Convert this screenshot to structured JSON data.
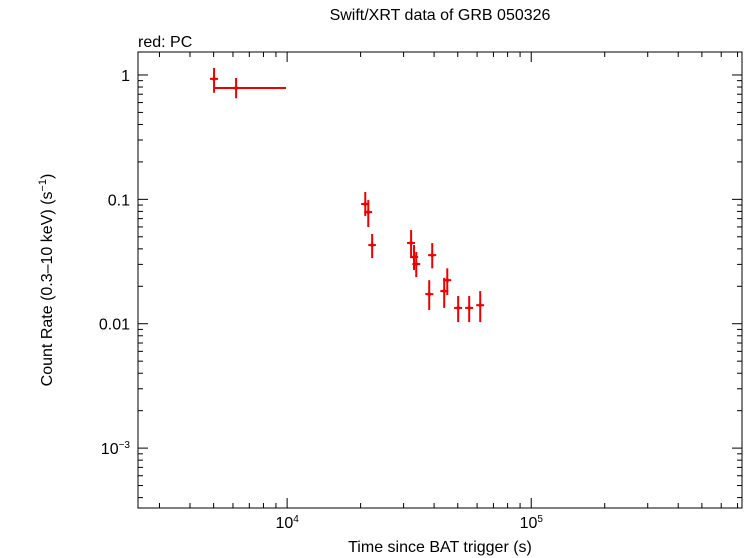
{
  "chart_data": {
    "type": "scatter",
    "title": "Swift/XRT data of GRB 050326",
    "xlabel": "Time since BAT trigger (s)",
    "ylabel": "Count Rate (0.3–10 keV) (s",
    "ylabel_sup": "−1",
    "ylabel_end": ")",
    "xscale": "log",
    "yscale": "log",
    "xlim": [
      2450,
      730000
    ],
    "ylim": [
      0.00033,
      1.53
    ],
    "xticks": [
      {
        "value": 10000,
        "label": "10",
        "sup": "4"
      },
      {
        "value": 100000,
        "label": "10",
        "sup": "5"
      }
    ],
    "yticks": [
      {
        "value": 0.001,
        "label": "10",
        "sup": "−3"
      },
      0.01,
      0.1,
      1
    ],
    "series": [
      {
        "name": "red: PC",
        "color": "#ee0000",
        "x": [
          5020,
          6180,
          20900,
          21500,
          22300,
          32200,
          33100,
          33800,
          39300,
          38200,
          44000,
          45300,
          50200,
          55700,
          61800
        ],
        "xlow": [
          4830,
          5020,
          20100,
          20700,
          21500,
          31000,
          31900,
          32600,
          37800,
          36800,
          42400,
          43600,
          48300,
          53600,
          59500
        ],
        "xhigh": [
          5210,
          9900,
          21700,
          22300,
          23100,
          33400,
          34400,
          35100,
          40800,
          39700,
          45700,
          47000,
          52100,
          57800,
          64100
        ],
        "values": [
          0.93,
          0.785,
          0.0917,
          0.079,
          0.0429,
          0.0446,
          0.0344,
          0.0302,
          0.0356,
          0.0173,
          0.0183,
          0.0224,
          0.0134,
          0.0134,
          0.0141
        ],
        "ylow": [
          0.72,
          0.65,
          0.0734,
          0.0599,
          0.0337,
          0.0337,
          0.027,
          0.0237,
          0.0279,
          0.0129,
          0.0134,
          0.017,
          0.0103,
          0.0103,
          0.0103
        ],
        "yhigh": [
          1.14,
          0.946,
          0.1146,
          0.0987,
          0.0526,
          0.0566,
          0.0429,
          0.0377,
          0.0445,
          0.0224,
          0.0234,
          0.0279,
          0.0167,
          0.0167,
          0.0183
        ]
      }
    ]
  }
}
